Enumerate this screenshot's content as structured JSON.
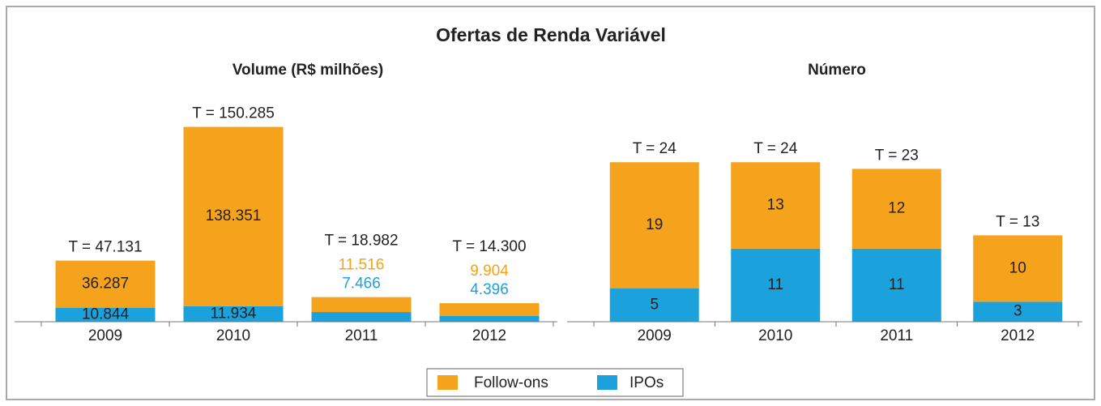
{
  "title": "Ofertas de Renda Variável",
  "chart_data": [
    {
      "type": "bar",
      "stacked": true,
      "title": "Volume (R$ milhões)",
      "categories": [
        "2009",
        "2010",
        "2011",
        "2012"
      ],
      "series": [
        {
          "name": "IPOs",
          "color": "#1ba1dc",
          "values": [
            10844,
            11934,
            7466,
            4396
          ],
          "value_labels": [
            "10.844",
            "11.934",
            "7.466",
            "4.396"
          ]
        },
        {
          "name": "Follow-ons",
          "color": "#f5a21c",
          "values": [
            36287,
            138351,
            11516,
            9904
          ],
          "value_labels": [
            "36.287",
            "138.351",
            "11.516",
            "9.904"
          ]
        }
      ],
      "total_labels": [
        "T = 47.131",
        "T = 150.285",
        "T = 18.982",
        "T = 14.300"
      ],
      "ylim": [
        0,
        160000
      ]
    },
    {
      "type": "bar",
      "stacked": true,
      "title": "Número",
      "categories": [
        "2009",
        "2010",
        "2011",
        "2012"
      ],
      "series": [
        {
          "name": "IPOs",
          "color": "#1ba1dc",
          "values": [
            5,
            11,
            11,
            3
          ]
        },
        {
          "name": "Follow-ons",
          "color": "#f5a21c",
          "values": [
            19,
            13,
            12,
            10
          ]
        }
      ],
      "total_labels": [
        "T = 24",
        "T = 24",
        "T = 23",
        "T = 13"
      ],
      "ylim": [
        0,
        30
      ]
    }
  ]
}
